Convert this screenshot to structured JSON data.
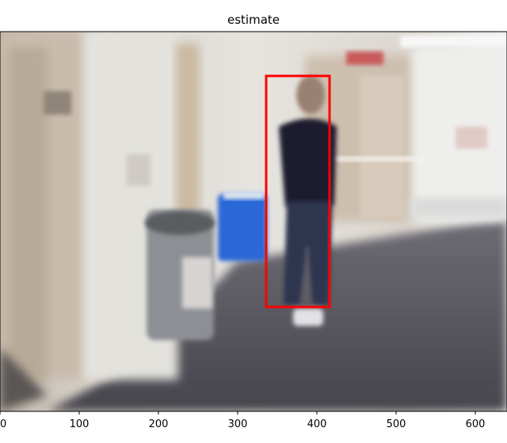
{
  "title": "estimate",
  "x_axis": {
    "range": [
      0,
      640
    ],
    "ticks": [
      0,
      100,
      200,
      300,
      400,
      500,
      600
    ]
  },
  "y_axis": {
    "range": [
      480,
      0
    ]
  },
  "estimate_box": {
    "x_min": 336,
    "x_max": 416,
    "y_min": 56,
    "y_max": 348,
    "color": "#ff0000"
  },
  "scene": {
    "description_visible": "blurred hallway with walking person, grey trash can and blue bin"
  }
}
